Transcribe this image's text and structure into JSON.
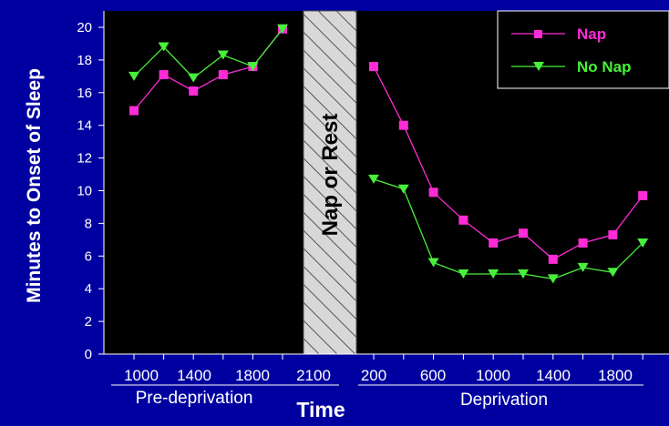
{
  "chart_data": {
    "type": "line",
    "ylabel": "Minutes to Onset of Sleep",
    "xlabel": "Time",
    "ylim": [
      0,
      20
    ],
    "yticks": [
      "0",
      "2",
      "4",
      "6",
      "8",
      "10",
      "12",
      "14",
      "16",
      "18",
      "20"
    ],
    "band_label": "Nap or Rest",
    "legend_position": "top-right",
    "groups": [
      {
        "label": "Pre-deprivation",
        "tick_labels": [
          "1000",
          "1400",
          "1800",
          "2100"
        ],
        "x": [
          1000,
          1200,
          1400,
          1600,
          1800,
          2000
        ],
        "series": [
          {
            "name": "Nap",
            "values": [
              14.9,
              17.1,
              16.1,
              17.1,
              17.6,
              19.9
            ]
          },
          {
            "name": "No Nap",
            "values": [
              17.0,
              18.8,
              16.9,
              18.3,
              17.6,
              19.9
            ]
          }
        ]
      },
      {
        "label": "Deprivation",
        "tick_labels": [
          "200",
          "600",
          "1000",
          "1400",
          "1800"
        ],
        "x": [
          200,
          400,
          600,
          800,
          1000,
          1200,
          1400,
          1600,
          1800,
          2000
        ],
        "series": [
          {
            "name": "Nap",
            "values": [
              17.6,
              14.0,
              9.9,
              8.2,
              6.8,
              7.4,
              5.8,
              6.8,
              7.3,
              9.7
            ]
          },
          {
            "name": "No Nap",
            "values": [
              10.7,
              10.1,
              5.6,
              4.9,
              4.9,
              4.9,
              4.6,
              5.3,
              5.0,
              6.8
            ]
          }
        ]
      }
    ],
    "colors": {
      "Nap": "#ff2bd6",
      "No Nap": "#47f03a",
      "background": "#0000a0",
      "plot_background": "#000000",
      "band": "#c8c8c8"
    }
  }
}
